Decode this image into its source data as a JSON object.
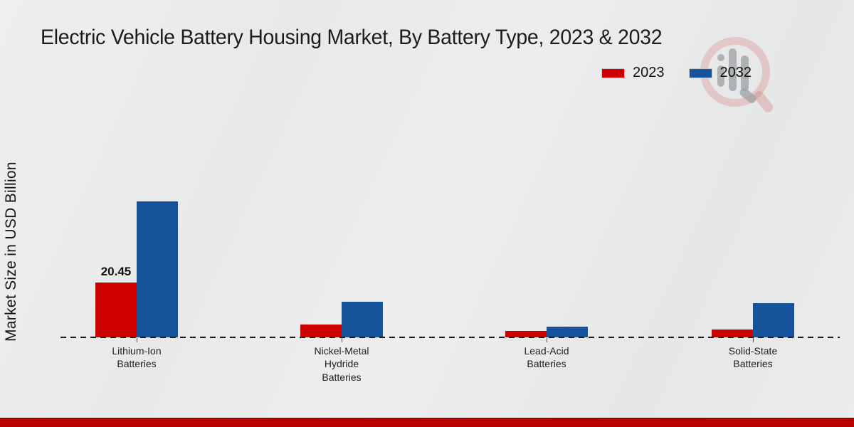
{
  "title": "Electric Vehicle Battery Housing Market, By Battery Type, 2023 & 2032",
  "legend": {
    "items": [
      {
        "label": "2023",
        "color": "#cc0000"
      },
      {
        "label": "2032",
        "color": "#15539b"
      }
    ]
  },
  "y_axis_label": "Market Size in USD Billion",
  "watermark": {
    "icon": "market-research-logo-watermark"
  },
  "chart_data": {
    "type": "bar",
    "title": "Electric Vehicle Battery Housing Market, By Battery Type, 2023 & 2032",
    "xlabel": "",
    "ylabel": "Market Size in USD Billion",
    "grid": false,
    "legend_position": "top-right",
    "categories": [
      "Lithium-Ion Batteries",
      "Nickel-Metal Hydride Batteries",
      "Lead-Acid Batteries",
      "Solid-State Batteries"
    ],
    "category_label_lines": [
      [
        "Lithium-Ion",
        "Batteries"
      ],
      [
        "Nickel-Metal",
        "Hydride",
        "Batteries"
      ],
      [
        "Lead-Acid",
        "Batteries"
      ],
      [
        "Solid-State",
        "Batteries"
      ]
    ],
    "series": [
      {
        "name": "2023",
        "color": "#cc0000",
        "values": [
          20.45,
          4.9,
          2.4,
          2.9
        ]
      },
      {
        "name": "2032",
        "color": "#15539b",
        "values": [
          50.7,
          13.3,
          4.1,
          12.8
        ]
      }
    ],
    "data_labels": [
      {
        "series_index": 0,
        "category_index": 0,
        "text": "20.45"
      }
    ],
    "ylim": [
      0,
      55
    ]
  }
}
